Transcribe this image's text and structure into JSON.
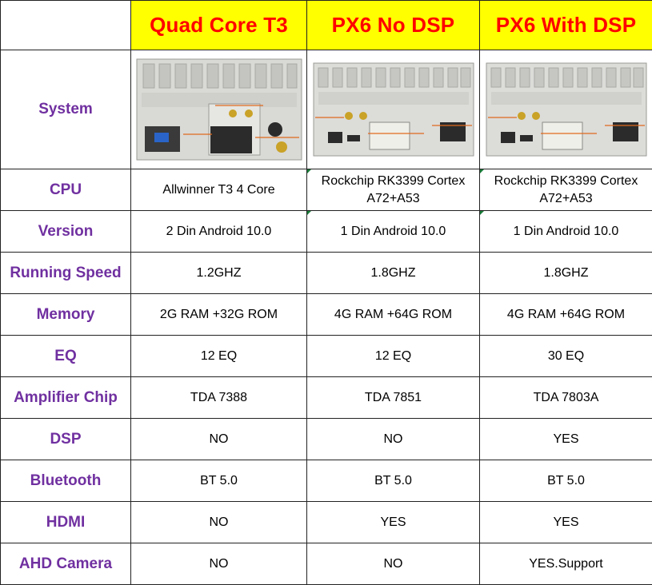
{
  "columns": [
    "",
    "Quad Core T3",
    "PX6 No DSP",
    "PX6 With DSP"
  ],
  "system_label": "System",
  "system_images": [
    {
      "icon": "radio-back-panel-t3-image"
    },
    {
      "icon": "radio-back-panel-px6-image"
    },
    {
      "icon": "radio-back-panel-px6-dsp-image"
    }
  ],
  "rows": [
    {
      "label": "CPU",
      "values": [
        "Allwinner T3 4 Core",
        "Rockchip RK3399 Cortex A72+A53",
        "Rockchip RK3399 Cortex A72+A53"
      ]
    },
    {
      "label": "Version",
      "values": [
        "2 Din Android 10.0",
        "1 Din Android 10.0",
        "1 Din Android 10.0"
      ]
    },
    {
      "label": "Running Speed",
      "values": [
        "1.2GHZ",
        "1.8GHZ",
        "1.8GHZ"
      ]
    },
    {
      "label": "Memory",
      "values": [
        "2G RAM +32G ROM",
        "4G RAM +64G ROM",
        "4G RAM +64G ROM"
      ]
    },
    {
      "label": "EQ",
      "values": [
        "12 EQ",
        "12 EQ",
        "30 EQ"
      ]
    },
    {
      "label": "Amplifier Chip",
      "values": [
        "TDA 7388",
        "TDA 7851",
        "TDA 7803A"
      ]
    },
    {
      "label": "DSP",
      "values": [
        "NO",
        "NO",
        "YES"
      ]
    },
    {
      "label": "Bluetooth",
      "values": [
        "BT 5.0",
        "BT 5.0",
        "BT 5.0"
      ]
    },
    {
      "label": "HDMI",
      "values": [
        "NO",
        "YES",
        "YES"
      ]
    },
    {
      "label": "AHD Camera",
      "values": [
        "NO",
        "NO",
        "YES.Support"
      ]
    }
  ],
  "colors": {
    "header_bg": "#ffff00",
    "header_text": "#ff0000",
    "label_text": "#7030a0",
    "border": "#222222"
  }
}
